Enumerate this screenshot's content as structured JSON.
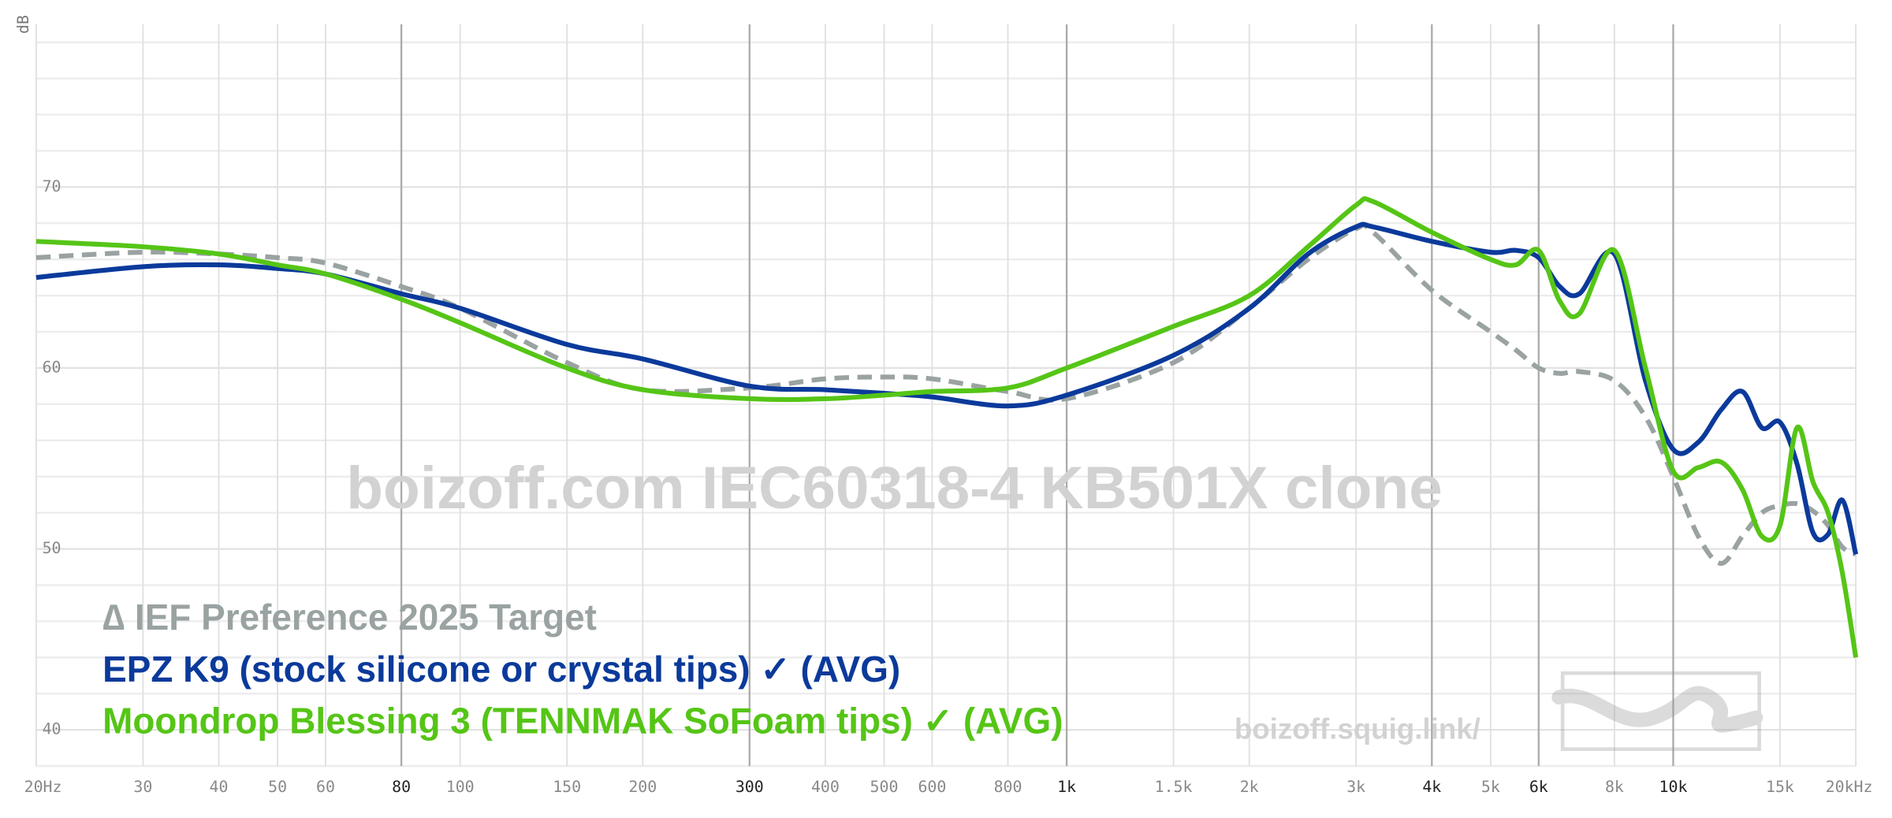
{
  "chart_data": {
    "type": "line",
    "y_label": "dB",
    "watermark": "boizoff.com IEC60318-4 KB501X clone",
    "site": "boizoff.squig.link/",
    "log_x": true,
    "grid": true,
    "xlim": [
      20,
      20000
    ],
    "ylim": [
      38,
      79
    ],
    "xticks": [
      {
        "value": 20,
        "label": "20Hz"
      },
      30,
      40,
      50,
      60,
      80,
      100,
      150,
      200,
      300,
      400,
      500,
      600,
      800,
      {
        "value": 1000,
        "label": "1k"
      },
      {
        "value": 1500,
        "label": "1.5k"
      },
      {
        "value": 2000,
        "label": "2k"
      },
      {
        "value": 3000,
        "label": "3k"
      },
      {
        "value": 4000,
        "label": "4k"
      },
      {
        "value": 5000,
        "label": "5k"
      },
      {
        "value": 6000,
        "label": "6k"
      },
      {
        "value": 8000,
        "label": "8k"
      },
      {
        "value": 10000,
        "label": "10k"
      },
      {
        "value": 15000,
        "label": "15k"
      },
      {
        "value": 20000,
        "label": "20kHz"
      }
    ],
    "emphasized_xticks": [
      80,
      300,
      1000,
      4000,
      6000,
      10000
    ],
    "yticks": [
      40,
      50,
      60,
      70
    ],
    "minor_yticks": [
      38,
      42,
      44,
      46,
      48,
      52,
      54,
      56,
      58,
      62,
      64,
      66,
      68,
      72,
      74,
      76,
      78
    ],
    "x": [
      20,
      30,
      40,
      50,
      60,
      80,
      100,
      150,
      200,
      300,
      400,
      500,
      600,
      800,
      1000,
      1500,
      2000,
      2500,
      3000,
      3200,
      4000,
      5000,
      5500,
      6000,
      6500,
      7000,
      8000,
      9000,
      10000,
      11000,
      12000,
      13000,
      14000,
      15000,
      16000,
      17000,
      18000,
      19000,
      20000
    ],
    "series": [
      {
        "name": "∆ IEF Preference 2025 Target",
        "color": "#9aa2a2",
        "dashed": true,
        "values": [
          66.1,
          66.4,
          66.3,
          66.1,
          65.8,
          64.5,
          63.3,
          60.3,
          58.8,
          58.9,
          59.4,
          59.5,
          59.4,
          58.7,
          58.3,
          60.3,
          63.3,
          66.0,
          67.7,
          67.5,
          64.3,
          62.0,
          61.0,
          60.0,
          59.7,
          59.8,
          59.3,
          57.3,
          54.0,
          50.7,
          49.2,
          50.7,
          52.0,
          52.4,
          52.5,
          52.1,
          51.3,
          50.1,
          49.7
        ]
      },
      {
        "name": "EPZ K9 (stock silicone or crystal tips) ✓ (AVG)",
        "color": "#0b3a9b",
        "dashed": false,
        "values": [
          65.0,
          65.6,
          65.7,
          65.5,
          65.2,
          64.1,
          63.3,
          61.3,
          60.5,
          59.0,
          58.8,
          58.6,
          58.4,
          57.9,
          58.5,
          60.7,
          63.3,
          66.3,
          67.8,
          67.8,
          67.0,
          66.4,
          66.5,
          66.1,
          64.5,
          64.1,
          66.3,
          59.3,
          55.5,
          55.9,
          57.7,
          58.7,
          56.7,
          57.0,
          54.7,
          50.9,
          50.8,
          52.7,
          49.7
        ]
      },
      {
        "name": "Moondrop Blessing 3 (TENNMAK SoFoam tips) ✓ (AVG)",
        "color": "#55c516",
        "dashed": false,
        "values": [
          67.0,
          66.7,
          66.3,
          65.7,
          65.2,
          63.8,
          62.5,
          60.0,
          58.8,
          58.3,
          58.3,
          58.5,
          58.7,
          58.9,
          60.0,
          62.3,
          64.0,
          66.7,
          69.0,
          69.2,
          67.5,
          66.0,
          65.7,
          66.5,
          63.7,
          63.0,
          66.5,
          60.0,
          54.3,
          54.5,
          54.8,
          53.3,
          50.7,
          51.3,
          56.7,
          53.7,
          52.0,
          48.7,
          44.0
        ]
      }
    ]
  }
}
